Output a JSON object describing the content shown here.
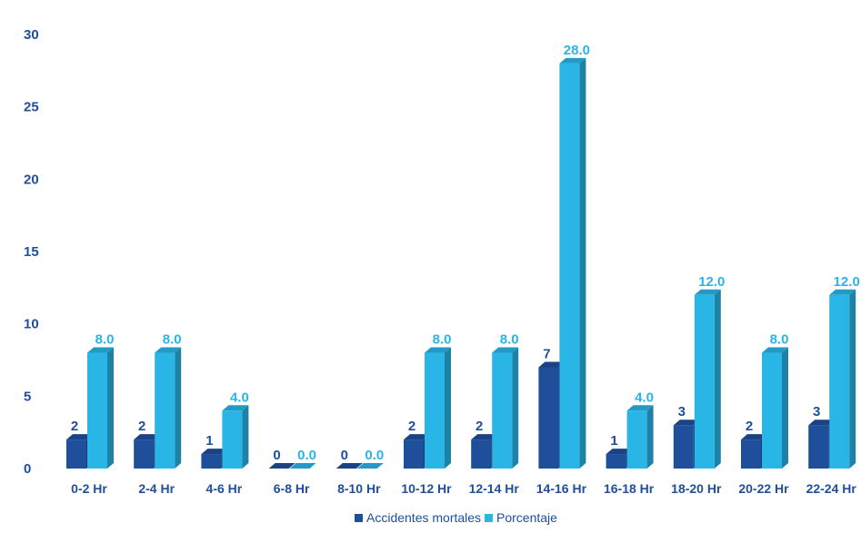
{
  "chart_data": {
    "type": "bar",
    "categories": [
      "0-2 Hr",
      "2-4 Hr",
      "4-6 Hr",
      "6-8 Hr",
      "8-10 Hr",
      "10-12 Hr",
      "12-14 Hr",
      "14-16 Hr",
      "16-18 Hr",
      "18-20 Hr",
      "20-22 Hr",
      "22-24 Hr"
    ],
    "series": [
      {
        "name": "Accidentes mortales",
        "values": [
          2,
          2,
          1,
          0,
          0,
          2,
          2,
          7,
          1,
          3,
          2,
          3
        ],
        "labels": [
          "2",
          "2",
          "1",
          "0",
          "0",
          "2",
          "2",
          "7",
          "1",
          "3",
          "2",
          "3"
        ],
        "color": "#1f4e9b"
      },
      {
        "name": "Porcentaje",
        "values": [
          8.0,
          8.0,
          4.0,
          0.0,
          0.0,
          8.0,
          8.0,
          28.0,
          4.0,
          12.0,
          8.0,
          12.0
        ],
        "labels": [
          "8.0",
          "8.0",
          "4.0",
          "0.0",
          "0.0",
          "8.0",
          "8.0",
          "28.0",
          "4.0",
          "12.0",
          "8.0",
          "12.0"
        ],
        "color": "#29b5e6"
      }
    ],
    "y_ticks": [
      "0",
      "5",
      "10",
      "15",
      "20",
      "25",
      "30"
    ],
    "ylim": [
      0,
      30
    ],
    "legend_position": "bottom",
    "grid": false,
    "title": "",
    "xlabel": "",
    "ylabel": ""
  }
}
